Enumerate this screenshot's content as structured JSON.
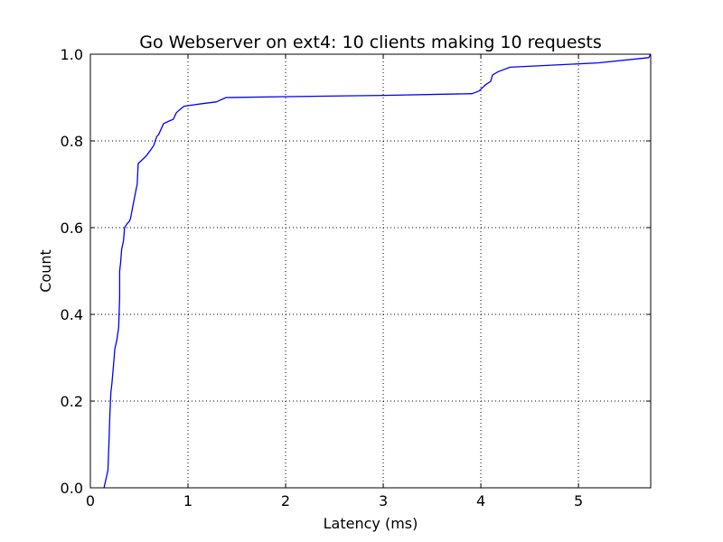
{
  "chart_data": {
    "type": "line",
    "title": "Go Webserver on ext4: 10 clients making 10 requests",
    "xlabel": "Latency (ms)",
    "ylabel": "Count",
    "xlim": [
      0,
      5.74
    ],
    "ylim": [
      0,
      1.0
    ],
    "x_ticks": [
      "0",
      "1",
      "2",
      "3",
      "4",
      "5"
    ],
    "y_ticks": [
      "0.0",
      "0.2",
      "0.4",
      "0.6",
      "0.8",
      "1.0"
    ],
    "grid": true,
    "line_color": "#0000ff",
    "series": [
      {
        "x": [
          0.14,
          0.18,
          0.19,
          0.2,
          0.21,
          0.22,
          0.24,
          0.25,
          0.27,
          0.29,
          0.3,
          0.3,
          0.31,
          0.32,
          0.34,
          0.35,
          0.38,
          0.4,
          0.41,
          0.44,
          0.47,
          0.48,
          0.49,
          0.5,
          0.51,
          0.57,
          0.62,
          0.65,
          0.68,
          0.7,
          0.75,
          0.8,
          0.85,
          0.88,
          0.93,
          0.96,
          1.02,
          1.15,
          1.29,
          1.39,
          2.0,
          3.0,
          3.91,
          3.98,
          4.05,
          4.1,
          4.12,
          4.18,
          4.3,
          5.2,
          5.72,
          5.74
        ],
        "y": [
          0.0,
          0.04,
          0.1,
          0.17,
          0.22,
          0.24,
          0.29,
          0.32,
          0.34,
          0.37,
          0.44,
          0.5,
          0.52,
          0.55,
          0.57,
          0.6,
          0.61,
          0.615,
          0.62,
          0.655,
          0.69,
          0.7,
          0.748,
          0.75,
          0.752,
          0.765,
          0.78,
          0.79,
          0.81,
          0.815,
          0.84,
          0.845,
          0.85,
          0.865,
          0.875,
          0.88,
          0.882,
          0.886,
          0.89,
          0.9,
          0.902,
          0.905,
          0.909,
          0.915,
          0.93,
          0.937,
          0.952,
          0.96,
          0.97,
          0.98,
          0.992,
          1.0
        ]
      }
    ]
  }
}
